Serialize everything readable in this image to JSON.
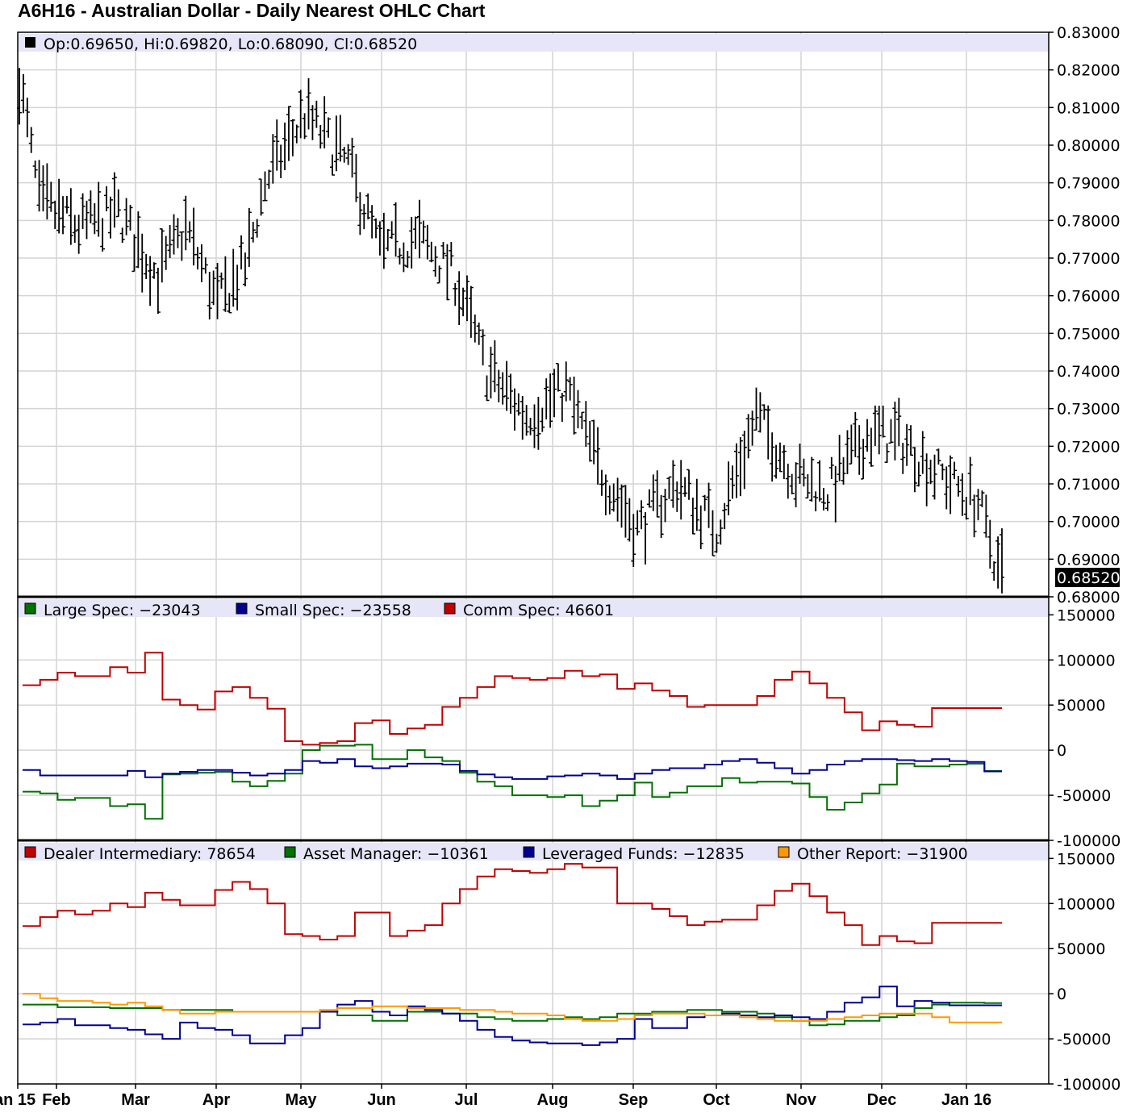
{
  "chart_data": [
    {
      "type": "ohlc",
      "title": "A6H16 - Australian Dollar - Daily Nearest OHLC Chart",
      "legend": {
        "open_label": "Op:0.69650",
        "high_label": "Hi:0.69820",
        "low_label": "Lo:0.68090",
        "close_label": "Cl:0.68520",
        "color": "#000000"
      },
      "ylim": [
        0.68,
        0.83
      ],
      "y_ticks": [
        "0.83000",
        "0.82000",
        "0.81000",
        "0.80000",
        "0.79000",
        "0.78000",
        "0.77000",
        "0.76000",
        "0.75000",
        "0.74000",
        "0.73000",
        "0.72000",
        "0.71000",
        "0.70000",
        "0.69000",
        "0.68000"
      ],
      "last_price_label": "0.68520",
      "x_ticks": [
        "Jan 15",
        "Feb",
        "Mar",
        "Apr",
        "May",
        "Jun",
        "Jul",
        "Aug",
        "Sep",
        "Oct",
        "Nov",
        "Dec",
        "Jan 16"
      ],
      "anchors_t": [
        0,
        5,
        15,
        25,
        35,
        42,
        50,
        57,
        62,
        72,
        83,
        91,
        101,
        110,
        118,
        128,
        138,
        146,
        156,
        166,
        176,
        186,
        196,
        204,
        214,
        222,
        232,
        242,
        248
      ],
      "anchors_price": [
        0.818,
        0.785,
        0.778,
        0.782,
        0.765,
        0.778,
        0.758,
        0.768,
        0.79,
        0.808,
        0.795,
        0.772,
        0.775,
        0.765,
        0.74,
        0.728,
        0.735,
        0.715,
        0.698,
        0.71,
        0.698,
        0.728,
        0.712,
        0.708,
        0.723,
        0.722,
        0.713,
        0.705,
        0.684
      ],
      "ohlc_summary": {
        "open": 0.6965,
        "high": 0.6982,
        "low": 0.6809,
        "close": 0.6852
      }
    },
    {
      "type": "step-line",
      "ylim": [
        -100000,
        170000
      ],
      "y_ticks": [
        "150000",
        "100000",
        "50000",
        "0",
        "-50000",
        "-100000"
      ],
      "series": [
        {
          "name": "Large Spec",
          "value_label": "Large Spec: −23043",
          "color": "#007000",
          "values": [
            -46000,
            -48000,
            -55000,
            -53000,
            -53000,
            -62000,
            -60000,
            -76000,
            -27000,
            -26000,
            -25000,
            -24000,
            -35000,
            -40000,
            -34000,
            -26000,
            0,
            5000,
            5000,
            6000,
            -10000,
            -10000,
            0,
            -8000,
            -12000,
            -25000,
            -35000,
            -40000,
            -50000,
            -50000,
            -52000,
            -50000,
            -62000,
            -56000,
            -50000,
            -36000,
            -52000,
            -47000,
            -40000,
            -40000,
            -31000,
            -36000,
            -35000,
            -35000,
            -37000,
            -52000,
            -66000,
            -58000,
            -48000,
            -38000,
            -15000,
            -18000,
            -18000,
            -16000,
            -15000,
            -23043
          ]
        },
        {
          "name": "Small Spec",
          "value_label": "Small Spec: −23558",
          "color": "#000090",
          "values": [
            -22000,
            -28000,
            -28000,
            -28000,
            -28000,
            -28000,
            -23000,
            -30000,
            -26000,
            -24000,
            -22000,
            -22000,
            -25000,
            -28000,
            -26000,
            -22000,
            -12000,
            -14000,
            -10000,
            -18000,
            -20000,
            -18000,
            -15000,
            -15000,
            -16000,
            -23000,
            -27000,
            -30000,
            -32000,
            -32000,
            -29000,
            -28000,
            -26000,
            -28000,
            -32000,
            -26000,
            -22000,
            -20000,
            -20000,
            -16000,
            -12000,
            -10000,
            -14000,
            -20000,
            -26000,
            -22000,
            -16000,
            -12000,
            -10000,
            -10000,
            -11000,
            -12000,
            -10000,
            -12000,
            -13000,
            -23558
          ]
        },
        {
          "name": "Comm Spec",
          "value_label": "Comm Spec: 46601",
          "color": "#c00000",
          "values": [
            72000,
            78000,
            86000,
            82000,
            82000,
            92000,
            86000,
            108000,
            56000,
            50000,
            45000,
            65000,
            70000,
            58000,
            46000,
            10000,
            6000,
            8000,
            10000,
            30000,
            33000,
            18000,
            24000,
            28000,
            48000,
            58000,
            70000,
            82000,
            80000,
            78000,
            80000,
            88000,
            82000,
            84000,
            68000,
            74000,
            66000,
            60000,
            48000,
            50000,
            50000,
            50000,
            60000,
            78000,
            87000,
            74000,
            58000,
            42000,
            22000,
            32000,
            28000,
            26000,
            46601,
            46601,
            46601,
            46601
          ]
        }
      ]
    },
    {
      "type": "step-line",
      "ylim": [
        -100000,
        170000
      ],
      "y_ticks": [
        "150000",
        "100000",
        "50000",
        "0",
        "-50000",
        "-100000"
      ],
      "series": [
        {
          "name": "Dealer Intermediary",
          "value_label": "Dealer Intermediary: 78654",
          "color": "#c00000",
          "values": [
            75000,
            85000,
            92000,
            88000,
            92000,
            100000,
            96000,
            112000,
            104000,
            98000,
            98000,
            115000,
            124000,
            116000,
            100000,
            66000,
            64000,
            60000,
            64000,
            90000,
            90000,
            64000,
            70000,
            76000,
            100000,
            116000,
            130000,
            138000,
            136000,
            134000,
            138000,
            144000,
            140000,
            140000,
            100000,
            100000,
            94000,
            86000,
            76000,
            80000,
            82000,
            82000,
            98000,
            114000,
            122000,
            108000,
            90000,
            76000,
            54000,
            64000,
            58000,
            56000,
            78654,
            78654,
            78654,
            78654
          ]
        },
        {
          "name": "Asset Manager",
          "value_label": "Asset Manager: −10361",
          "color": "#007000",
          "values": [
            -12000,
            -12000,
            -15000,
            -15000,
            -15000,
            -16000,
            -16000,
            -16000,
            -18000,
            -18000,
            -18000,
            -18000,
            -20000,
            -20000,
            -20000,
            -20000,
            -20000,
            -20000,
            -24000,
            -24000,
            -30000,
            -30000,
            -20000,
            -20000,
            -22000,
            -22000,
            -26000,
            -28000,
            -30000,
            -30000,
            -28000,
            -26000,
            -28000,
            -26000,
            -22000,
            -22000,
            -20000,
            -20000,
            -18000,
            -18000,
            -20000,
            -20000,
            -22000,
            -26000,
            -30000,
            -35000,
            -34000,
            -30000,
            -30000,
            -26000,
            -24000,
            -16000,
            -12000,
            -10000,
            -10000,
            -10361
          ]
        },
        {
          "name": "Leveraged Funds",
          "value_label": "Leveraged Funds: −12835",
          "color": "#000090",
          "values": [
            -34000,
            -32000,
            -28000,
            -35000,
            -35000,
            -38000,
            -40000,
            -45000,
            -50000,
            -32000,
            -38000,
            -40000,
            -46000,
            -55000,
            -55000,
            -46000,
            -38000,
            -20000,
            -12000,
            -8000,
            -20000,
            -24000,
            -14000,
            -18000,
            -22000,
            -30000,
            -40000,
            -48000,
            -52000,
            -54000,
            -55000,
            -55000,
            -57000,
            -54000,
            -50000,
            -28000,
            -38000,
            -38000,
            -26000,
            -24000,
            -22000,
            -24000,
            -26000,
            -24000,
            -26000,
            -28000,
            -20000,
            -10000,
            -4000,
            8000,
            -14000,
            -8000,
            -10000,
            -12835,
            -12835,
            -12835
          ]
        },
        {
          "name": "Other Report",
          "value_label": "Other Report: −31900",
          "color": "#ff9900",
          "values": [
            0,
            -5000,
            -8000,
            -8000,
            -10000,
            -12000,
            -10000,
            -14000,
            -18000,
            -22000,
            -22000,
            -20000,
            -20000,
            -20000,
            -20000,
            -20000,
            -20000,
            -18000,
            -16000,
            -16000,
            -14000,
            -14000,
            -16000,
            -16000,
            -16000,
            -18000,
            -18000,
            -20000,
            -22000,
            -22000,
            -24000,
            -28000,
            -30000,
            -30000,
            -28000,
            -24000,
            -22000,
            -22000,
            -22000,
            -24000,
            -24000,
            -26000,
            -28000,
            -30000,
            -30000,
            -30000,
            -28000,
            -26000,
            -24000,
            -22000,
            -22000,
            -22000,
            -26000,
            -31900,
            -31900,
            -31900
          ]
        }
      ]
    }
  ]
}
